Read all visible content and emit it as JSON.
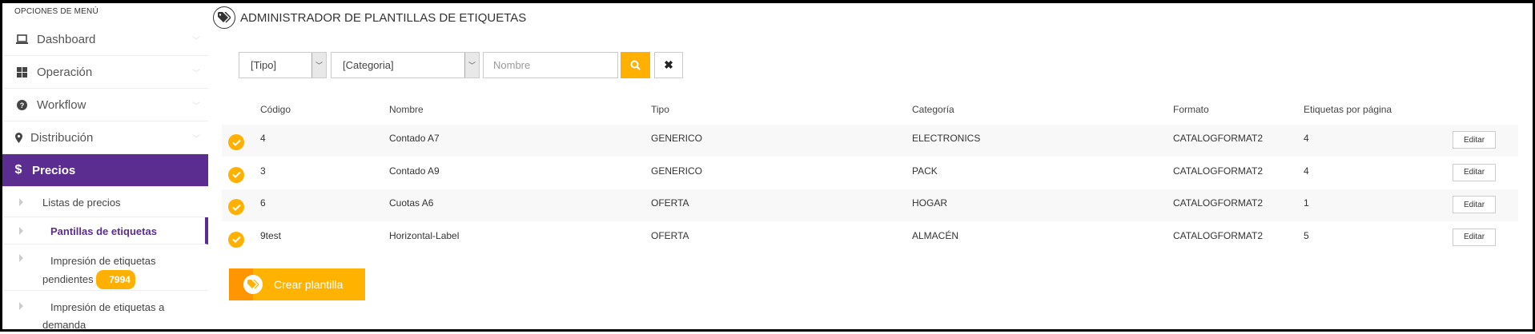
{
  "sidebar": {
    "title": "OPCIONES DE MENÚ",
    "items": [
      {
        "label": "Dashboard",
        "icon": "laptop-icon"
      },
      {
        "label": "Operación",
        "icon": "grid-icon"
      },
      {
        "label": "Workflow",
        "icon": "question-circle-icon"
      },
      {
        "label": "Distribución",
        "icon": "map-marker-icon"
      },
      {
        "label": "Precios",
        "icon": "dollar-icon"
      }
    ],
    "subitems": [
      {
        "label": "Listas de precios"
      },
      {
        "label": "Pantillas de etiquetas"
      },
      {
        "label": "Impresión de etiquetas pendientes",
        "badge": "7994"
      },
      {
        "label": "Impresión de etiquetas a demanda"
      }
    ]
  },
  "header": {
    "title": "ADMINISTRADOR DE PLANTILLAS DE ETIQUETAS",
    "icon": "tags-icon"
  },
  "filters": {
    "tipo": "[Tipo]",
    "categoria": "[Categoria]",
    "nombre_placeholder": "Nombre",
    "nombre_value": ""
  },
  "table": {
    "columns": [
      "Código",
      "Nombre",
      "Tipo",
      "Categoría",
      "Formato",
      "Etiquetas por página"
    ],
    "edit_label": "Editar",
    "rows": [
      {
        "codigo": "4",
        "nombre": "Contado A7",
        "tipo": "GENERICO",
        "categoria": "ELECTRONICS",
        "formato": "CATALOGFORMAT2",
        "etiquetas": "4"
      },
      {
        "codigo": "3",
        "nombre": "Contado A9",
        "tipo": "GENERICO",
        "categoria": "PACK",
        "formato": "CATALOGFORMAT2",
        "etiquetas": "4"
      },
      {
        "codigo": "6",
        "nombre": "Cuotas A6",
        "tipo": "OFERTA",
        "categoria": "HOGAR",
        "formato": "CATALOGFORMAT2",
        "etiquetas": "1"
      },
      {
        "codigo": "9test",
        "nombre": "Horizontal-Label",
        "tipo": "OFERTA",
        "categoria": "ALMACÉN",
        "formato": "CATALOGFORMAT2",
        "etiquetas": "5"
      }
    ]
  },
  "create_button": {
    "label": "Crear plantilla"
  },
  "colors": {
    "accent": "#ffb000",
    "primary": "#5c2d91"
  }
}
